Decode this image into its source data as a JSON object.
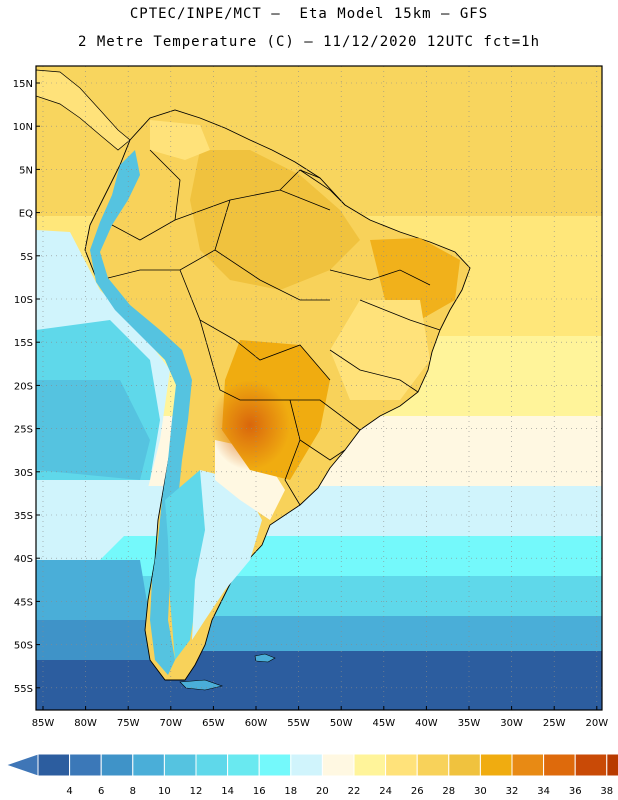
{
  "header": {
    "line1": "CPTEC/INPE/MCT –  Eta Model 15km – GFS",
    "line2": "2 Metre Temperature (C) – 11/12/2020 12UTC fct=1h"
  },
  "map": {
    "region": "South America",
    "lat_labels": [
      "15N",
      "10N",
      "5N",
      "EQ",
      "5S",
      "10S",
      "15S",
      "20S",
      "25S",
      "30S",
      "35S",
      "40S",
      "45S",
      "50S",
      "55S"
    ],
    "lon_labels": [
      "85W",
      "80W",
      "75W",
      "70W",
      "65W",
      "60W",
      "55W",
      "50W",
      "45W",
      "40W",
      "35W",
      "30W",
      "25W",
      "20W"
    ]
  },
  "colorbar": {
    "labels": [
      "4",
      "6",
      "8",
      "10",
      "12",
      "14",
      "16",
      "18",
      "20",
      "22",
      "24",
      "26",
      "28",
      "30",
      "32",
      "34",
      "36",
      "38"
    ],
    "colors": [
      "#2c5d9f",
      "#3b78b8",
      "#3f93c8",
      "#4aaed8",
      "#55c3e0",
      "#5fd8ea",
      "#69e9f0",
      "#74f9fb",
      "#d0f4fc",
      "#fff8e2",
      "#fff49a",
      "#ffe27a",
      "#f8d25a",
      "#f0c23e",
      "#f0ac10",
      "#e88a14",
      "#de6a0c",
      "#c94a06",
      "#b83a00"
    ],
    "left_arrow_color": "#3f76b7",
    "right_arrow_color": "#b83a00"
  }
}
